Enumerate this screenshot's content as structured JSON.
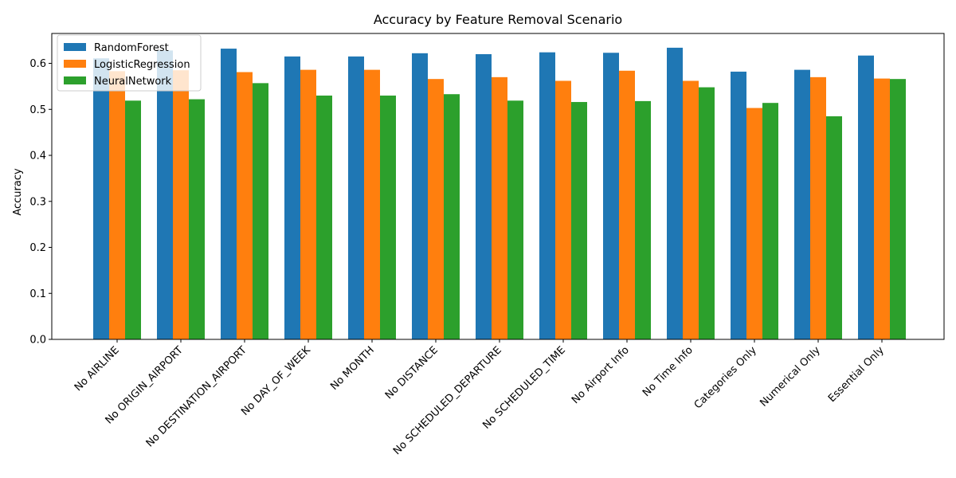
{
  "chart_data": {
    "type": "bar",
    "title": "Accuracy by Feature Removal Scenario",
    "xlabel": "",
    "ylabel": "Accuracy",
    "ylim": [
      0,
      0.665
    ],
    "yticks": [
      0.0,
      0.1,
      0.2,
      0.3,
      0.4,
      0.5,
      0.6
    ],
    "ytick_labels": [
      "0.0",
      "0.1",
      "0.2",
      "0.3",
      "0.4",
      "0.5",
      "0.6"
    ],
    "grid": false,
    "legend_position": "top-left",
    "categories": [
      "No AIRLINE",
      "No ORIGIN_AIRPORT",
      "No DESTINATION_AIRPORT",
      "No DAY_OF_WEEK",
      "No MONTH",
      "No DISTANCE",
      "No SCHEDULED_DEPARTURE",
      "No SCHEDULED_TIME",
      "No Airport Info",
      "No Time Info",
      "Categories Only",
      "Numerical Only",
      "Essential Only"
    ],
    "series": [
      {
        "name": "RandomForest",
        "color": "#1f77b4",
        "values": [
          0.611,
          0.628,
          0.632,
          0.615,
          0.615,
          0.622,
          0.62,
          0.624,
          0.623,
          0.634,
          0.582,
          0.586,
          0.617
        ]
      },
      {
        "name": "LogisticRegression",
        "color": "#ff7f0e",
        "values": [
          0.583,
          0.585,
          0.581,
          0.586,
          0.586,
          0.566,
          0.57,
          0.562,
          0.584,
          0.562,
          0.503,
          0.57,
          0.567
        ]
      },
      {
        "name": "NeuralNetwork",
        "color": "#2ca02c",
        "values": [
          0.519,
          0.522,
          0.557,
          0.53,
          0.53,
          0.533,
          0.519,
          0.516,
          0.518,
          0.548,
          0.514,
          0.485,
          0.566
        ]
      }
    ]
  }
}
